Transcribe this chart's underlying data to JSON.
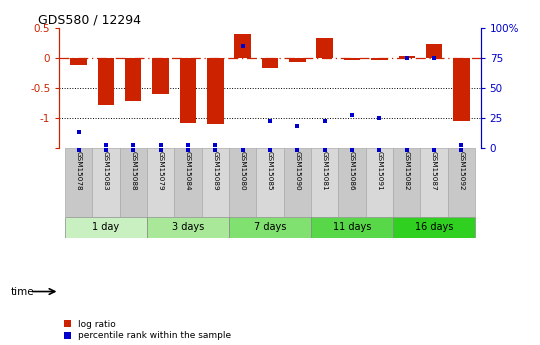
{
  "title": "GDS580 / 12294",
  "samples": [
    "GSM15078",
    "GSM15083",
    "GSM15088",
    "GSM15079",
    "GSM15084",
    "GSM15089",
    "GSM15080",
    "GSM15085",
    "GSM15090",
    "GSM15081",
    "GSM15086",
    "GSM15091",
    "GSM15082",
    "GSM15087",
    "GSM15092"
  ],
  "log_ratio": [
    -0.12,
    -0.78,
    -0.72,
    -0.6,
    -1.08,
    -1.1,
    0.4,
    -0.17,
    -0.08,
    0.33,
    -0.04,
    -0.04,
    0.02,
    0.22,
    -1.05
  ],
  "percentile": [
    13,
    2,
    2,
    2,
    2,
    2,
    85,
    22,
    18,
    22,
    27,
    25,
    75,
    75,
    2
  ],
  "groups": [
    {
      "label": "1 day",
      "start": 0,
      "end": 2,
      "color": "#c8f0c0"
    },
    {
      "label": "3 days",
      "start": 3,
      "end": 5,
      "color": "#a8e898"
    },
    {
      "label": "7 days",
      "start": 6,
      "end": 8,
      "color": "#80e070"
    },
    {
      "label": "11 days",
      "start": 9,
      "end": 11,
      "color": "#58d848"
    },
    {
      "label": "16 days",
      "start": 12,
      "end": 14,
      "color": "#30d020"
    }
  ],
  "bar_color": "#cc2200",
  "dot_color": "#0000cc",
  "ylim_left": [
    -1.5,
    0.5
  ],
  "ylim_right": [
    0,
    100
  ],
  "yticks_left": [
    -1.5,
    -1.0,
    -0.5,
    0.0,
    0.5
  ],
  "ytick_labels_left": [
    "",
    "-1",
    "-0.5",
    "0",
    "0.5"
  ],
  "yticks_right": [
    0,
    25,
    50,
    75,
    100
  ],
  "ytick_labels_right": [
    "0",
    "25",
    "50",
    "75",
    "100%"
  ],
  "label_log": "log ratio",
  "label_pct": "percentile rank within the sample",
  "time_label": "time"
}
